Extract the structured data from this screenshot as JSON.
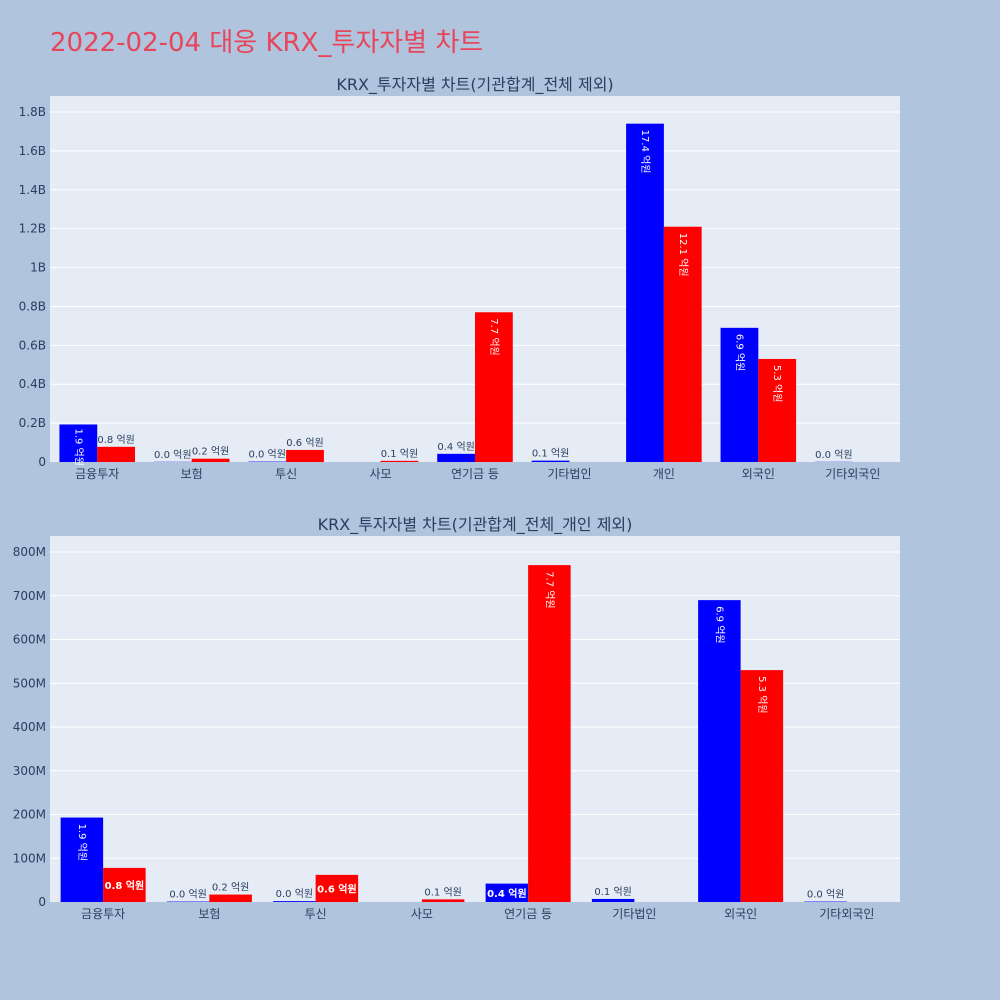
{
  "title": "2022-02-04 대웅 KRX_투자자별 차트",
  "colors": {
    "buy": "#0000ff",
    "sell": "#ff0000",
    "plot_bg": "#e5ecf6",
    "page_bg": "#b0c4de",
    "title": "#e8455b"
  },
  "chart_data": [
    {
      "type": "bar",
      "title": "KRX_투자자별 차트(기관합계_전체 제외)",
      "categories": [
        "금융투자",
        "보험",
        "투신",
        "사모",
        "연기금 등",
        "기타법인",
        "개인",
        "외국인",
        "기타외국인"
      ],
      "series": [
        {
          "color": "#0000ff",
          "values": [
            193000000,
            1000000,
            2000000,
            0,
            42000000,
            7000000,
            1740000000,
            690000000,
            1000000
          ],
          "labels": [
            "1.9 억원",
            "0.0 억원",
            "0.0 억원",
            "",
            "0.4 억원",
            "0.1 억원",
            "17.4 억원",
            "6.9 억원",
            "0.0 억원"
          ]
        },
        {
          "color": "#ff0000",
          "values": [
            78000000,
            17000000,
            62000000,
            6000000,
            770000000,
            0,
            1210000000,
            530000000,
            0
          ],
          "labels": [
            "0.8 억원",
            "0.2 억원",
            "0.6 억원",
            "0.1 억원",
            "7.7 억원",
            "",
            "12.1 억원",
            "5.3 억원",
            ""
          ]
        }
      ],
      "ylim": [
        0,
        1800000000
      ],
      "yticks": [
        0,
        200000000,
        400000000,
        600000000,
        800000000,
        1000000000,
        1200000000,
        1400000000,
        1600000000,
        1800000000
      ],
      "yticklabels": [
        "0",
        "0.2B",
        "0.4B",
        "0.6B",
        "0.8B",
        "1B",
        "1.2B",
        "1.4B",
        "1.6B",
        "1.8B"
      ],
      "grid": true,
      "legend": "none"
    },
    {
      "type": "bar",
      "title": "KRX_투자자별 차트(기관합계_전체_개인 제외)",
      "categories": [
        "금융투자",
        "보험",
        "투신",
        "사모",
        "연기금 등",
        "기타법인",
        "외국인",
        "기타외국인"
      ],
      "series": [
        {
          "color": "#0000ff",
          "values": [
            193000000,
            1000000,
            2000000,
            0,
            42000000,
            7000000,
            690000000,
            1000000
          ],
          "labels": [
            "1.9 억원",
            "0.0 억원",
            "0.0 억원",
            "",
            "0.4 억원",
            "0.1 억원",
            "6.9 억원",
            "0.0 억원"
          ]
        },
        {
          "color": "#ff0000",
          "values": [
            78000000,
            17000000,
            62000000,
            6000000,
            770000000,
            0,
            530000000,
            0
          ],
          "labels": [
            "0.8 억원",
            "0.2 억원",
            "0.6 억원",
            "0.1 억원",
            "7.7 억원",
            "",
            "5.3 억원",
            ""
          ]
        }
      ],
      "ylim": [
        0,
        800000000
      ],
      "yticks": [
        0,
        100000000,
        200000000,
        300000000,
        400000000,
        500000000,
        600000000,
        700000000,
        800000000
      ],
      "yticklabels": [
        "0",
        "100M",
        "200M",
        "300M",
        "400M",
        "500M",
        "600M",
        "700M",
        "800M"
      ],
      "grid": true,
      "legend": "none"
    }
  ]
}
